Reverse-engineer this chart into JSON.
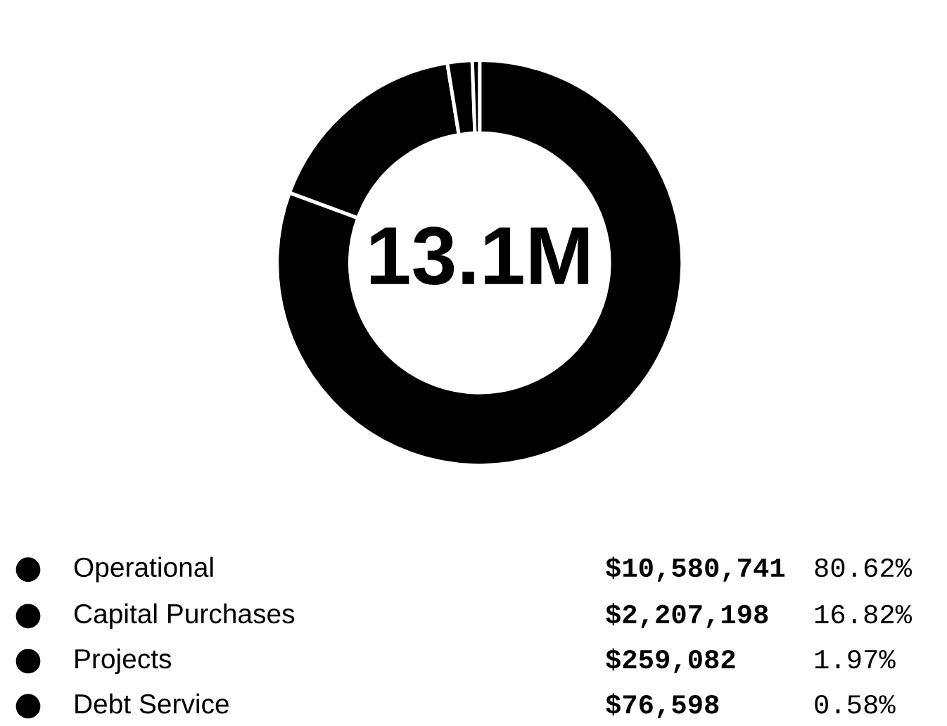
{
  "chart_data": {
    "type": "donut",
    "categories": [
      "Operational",
      "Capital Purchases",
      "Projects",
      "Debt Service"
    ],
    "values": [
      10580741,
      2207198,
      259082,
      76598
    ],
    "value_labels": [
      "$10,580,741",
      "$2,207,198",
      "$259,082",
      "$76,598"
    ],
    "colors": [
      "#000000",
      "#000000",
      "#000000",
      "#000000"
    ],
    "annotations": [
      "13.1M",
      "80.62%",
      "16.82%",
      "1.97%",
      "0.58%"
    ],
    "legend": "bottom"
  }
}
